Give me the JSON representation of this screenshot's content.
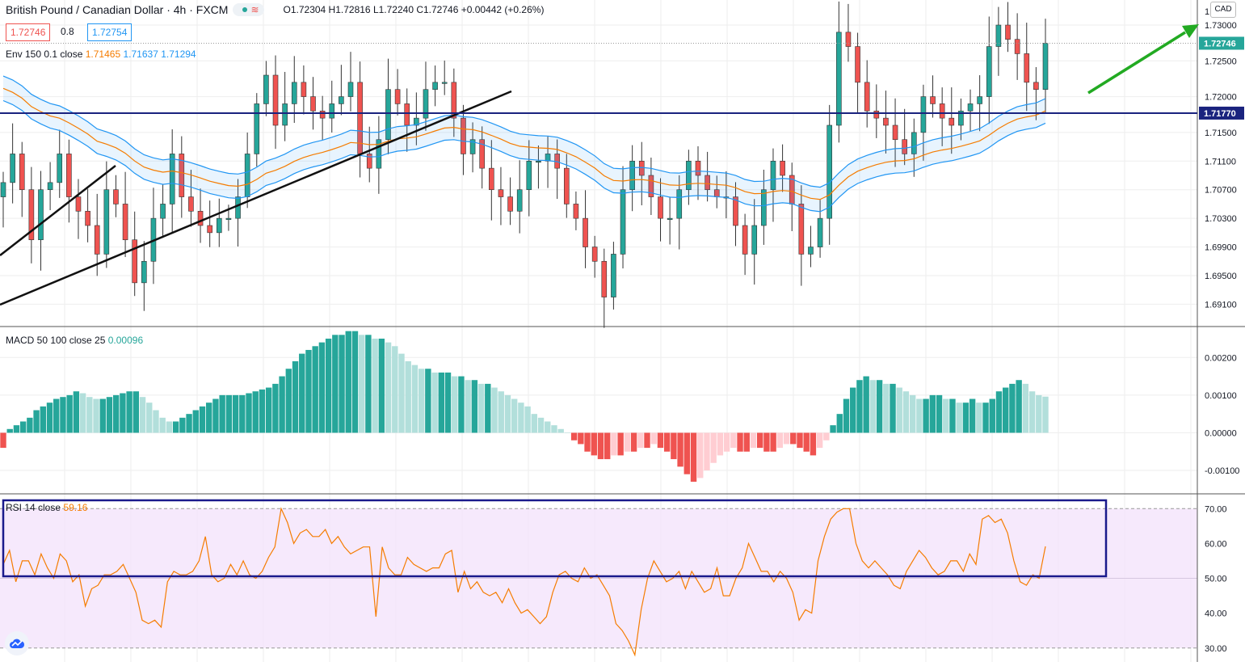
{
  "header": {
    "symbol": "British Pound / Canadian Dollar · 4h · FXCM",
    "ohlc_label": "O1.72304 H1.72816 L1.72240 C1.72746 +0.00442 (+0.26%)",
    "bid": "1.72746",
    "spread": "0.8",
    "ask": "1.72754",
    "currency_button": "CAD"
  },
  "legends": {
    "env_label": "Env 150 0.1 close",
    "env_basis": "1.71465",
    "env_upper": "1.71637",
    "env_lower": "1.71294",
    "macd_label": "MACD 50 100 close 25",
    "macd_value": "0.00096",
    "rsi_label": "RSI 14 close",
    "rsi_value": "59.16"
  },
  "colors": {
    "up": "#26a69a",
    "down": "#ef5350",
    "hist_up_strong": "#26a69a",
    "hist_up_weak": "#b2dfdb",
    "hist_down_strong": "#ef5350",
    "hist_down_weak": "#ffcdd2",
    "env_basis": "#f57c00",
    "env_band": "#2196f3",
    "rsi_line": "#f57c00",
    "rsi_bg": "#f3e1fb",
    "support_line": "#1a237e",
    "arrow": "#22aa22"
  },
  "chart_data": [
    {
      "type": "candlestick",
      "ylim": [
        1.688,
        1.7335
      ],
      "yticks": [
        "1.73000",
        "1.72500",
        "1.72000",
        "1.71500",
        "1.71100",
        "1.70700",
        "1.70300",
        "1.69900",
        "1.69500",
        "1.69100"
      ],
      "last_price_label": "1.72746",
      "last_price": 1.72746,
      "support_label": "1.71770",
      "support_level": 1.7177,
      "top_axis_fragment": "1.7",
      "close_path": [
        1.708,
        1.712,
        1.707,
        1.7,
        1.707,
        1.708,
        1.712,
        1.706,
        1.704,
        1.702,
        1.698,
        1.707,
        1.705,
        1.7,
        1.694,
        1.697,
        1.703,
        1.705,
        1.712,
        1.706,
        1.704,
        1.702,
        1.701,
        1.703,
        1.703,
        1.706,
        1.712,
        1.719,
        1.723,
        1.716,
        1.719,
        1.722,
        1.72,
        1.718,
        1.717,
        1.719,
        1.72,
        1.722,
        1.712,
        1.71,
        1.714,
        1.721,
        1.719,
        1.716,
        1.717,
        1.721,
        1.722,
        1.722,
        1.717,
        1.712,
        1.714,
        1.71,
        1.707,
        1.706,
        1.704,
        1.707,
        1.711,
        1.711,
        1.712,
        1.71,
        1.705,
        1.703,
        1.699,
        1.697,
        1.692,
        1.698,
        1.707,
        1.711,
        1.709,
        1.706,
        1.703,
        1.703,
        1.707,
        1.711,
        1.709,
        1.707,
        1.706,
        1.706,
        1.702,
        1.698,
        1.702,
        1.707,
        1.711,
        1.709,
        1.705,
        1.698,
        1.699,
        1.703,
        1.716,
        1.729,
        1.727,
        1.722,
        1.718,
        1.717,
        1.716,
        1.714,
        1.712,
        1.715,
        1.72,
        1.719,
        1.717,
        1.716,
        1.718,
        1.719,
        1.72,
        1.727,
        1.73,
        1.728,
        1.726,
        1.722,
        1.721,
        1.72746
      ]
    },
    {
      "type": "bar",
      "ylim": [
        -0.0016,
        0.0028
      ],
      "yticks": [
        "0.00200",
        "0.00100",
        "0.00000",
        "-0.00100"
      ],
      "values": [
        -0.0004,
        0.0001,
        0.0002,
        0.0003,
        0.0004,
        0.0006,
        0.0007,
        0.0008,
        0.0009,
        0.00095,
        0.001,
        0.0011,
        0.00105,
        0.00095,
        0.0009,
        0.0009,
        0.00095,
        0.001,
        0.00105,
        0.0011,
        0.0011,
        0.00095,
        0.0008,
        0.0006,
        0.0004,
        0.0003,
        0.0003,
        0.0004,
        0.0005,
        0.0006,
        0.0007,
        0.0008,
        0.0009,
        0.001,
        0.001,
        0.001,
        0.001,
        0.00105,
        0.0011,
        0.00115,
        0.0012,
        0.0013,
        0.0015,
        0.0017,
        0.0019,
        0.0021,
        0.0022,
        0.0023,
        0.0024,
        0.0025,
        0.0026,
        0.0026,
        0.0027,
        0.0027,
        0.0026,
        0.0026,
        0.0025,
        0.0025,
        0.0024,
        0.0023,
        0.0021,
        0.0019,
        0.0018,
        0.0017,
        0.0017,
        0.0016,
        0.0016,
        0.0016,
        0.0015,
        0.0015,
        0.0014,
        0.0014,
        0.0013,
        0.0013,
        0.0012,
        0.0011,
        0.001,
        0.0009,
        0.0008,
        0.0007,
        0.0005,
        0.0004,
        0.0003,
        0.0002,
        0.0001,
        0.0,
        -0.0002,
        -0.0003,
        -0.0005,
        -0.0006,
        -0.0007,
        -0.0007,
        -0.0006,
        -0.0006,
        -0.0005,
        -0.0005,
        -0.0004,
        -0.0004,
        -0.0003,
        -0.0004,
        -0.0005,
        -0.0007,
        -0.0009,
        -0.0011,
        -0.0013,
        -0.0012,
        -0.001,
        -0.0008,
        -0.0006,
        -0.0005,
        -0.0004,
        -0.0005,
        -0.0005,
        -0.0004,
        -0.0004,
        -0.0005,
        -0.0005,
        -0.0004,
        -0.0003,
        -0.0003,
        -0.0004,
        -0.0005,
        -0.0006,
        -0.0004,
        -0.0002,
        0.0002,
        0.0005,
        0.0009,
        0.0012,
        0.0014,
        0.0015,
        0.0014,
        0.0014,
        0.0013,
        0.0013,
        0.0012,
        0.0011,
        0.001,
        0.0009,
        0.0009,
        0.001,
        0.001,
        0.0009,
        0.0009,
        0.0008,
        0.0008,
        0.0009,
        0.0008,
        0.0008,
        0.0009,
        0.0011,
        0.0012,
        0.0013,
        0.0014,
        0.0013,
        0.0011,
        0.001,
        0.00096
      ]
    },
    {
      "type": "line",
      "ylim": [
        26,
        74
      ],
      "yticks": [
        "70.00",
        "60.00",
        "50.00",
        "40.00",
        "30.00"
      ],
      "bands": [
        30,
        70
      ],
      "values": [
        54,
        58,
        49,
        55,
        55,
        51,
        57,
        53,
        50,
        57,
        55,
        49,
        51,
        42,
        47,
        48,
        51,
        51,
        52,
        54,
        50,
        46,
        38,
        37,
        38,
        36,
        49,
        52,
        51,
        51,
        52,
        55,
        62,
        51,
        49,
        50,
        54,
        51,
        55,
        51,
        50,
        52,
        56,
        59,
        70,
        66,
        60,
        63,
        64,
        62,
        62,
        64,
        60,
        62,
        59,
        57,
        58,
        59,
        59,
        39,
        59,
        53,
        51,
        51,
        56,
        54,
        53,
        52,
        53,
        53,
        57,
        58,
        46,
        52,
        47,
        49,
        46,
        45,
        46,
        43,
        47,
        43,
        40,
        41,
        39,
        37,
        39,
        46,
        51,
        52,
        50,
        49,
        53,
        50,
        51,
        48,
        45,
        37,
        35,
        32,
        28,
        41,
        50,
        55,
        52,
        49,
        50,
        52,
        47,
        52,
        49,
        46,
        47,
        53,
        45,
        45,
        50,
        53,
        60,
        56,
        52,
        52,
        49,
        52,
        50,
        46,
        38,
        41,
        40,
        55,
        62,
        67,
        69,
        70,
        70,
        60,
        55,
        53,
        55,
        53,
        51,
        48,
        47,
        52,
        55,
        58,
        56,
        53,
        51,
        52,
        55,
        55,
        52,
        57,
        54,
        67,
        68,
        66,
        67,
        63,
        55,
        49,
        48,
        51,
        50,
        59.16
      ]
    }
  ]
}
